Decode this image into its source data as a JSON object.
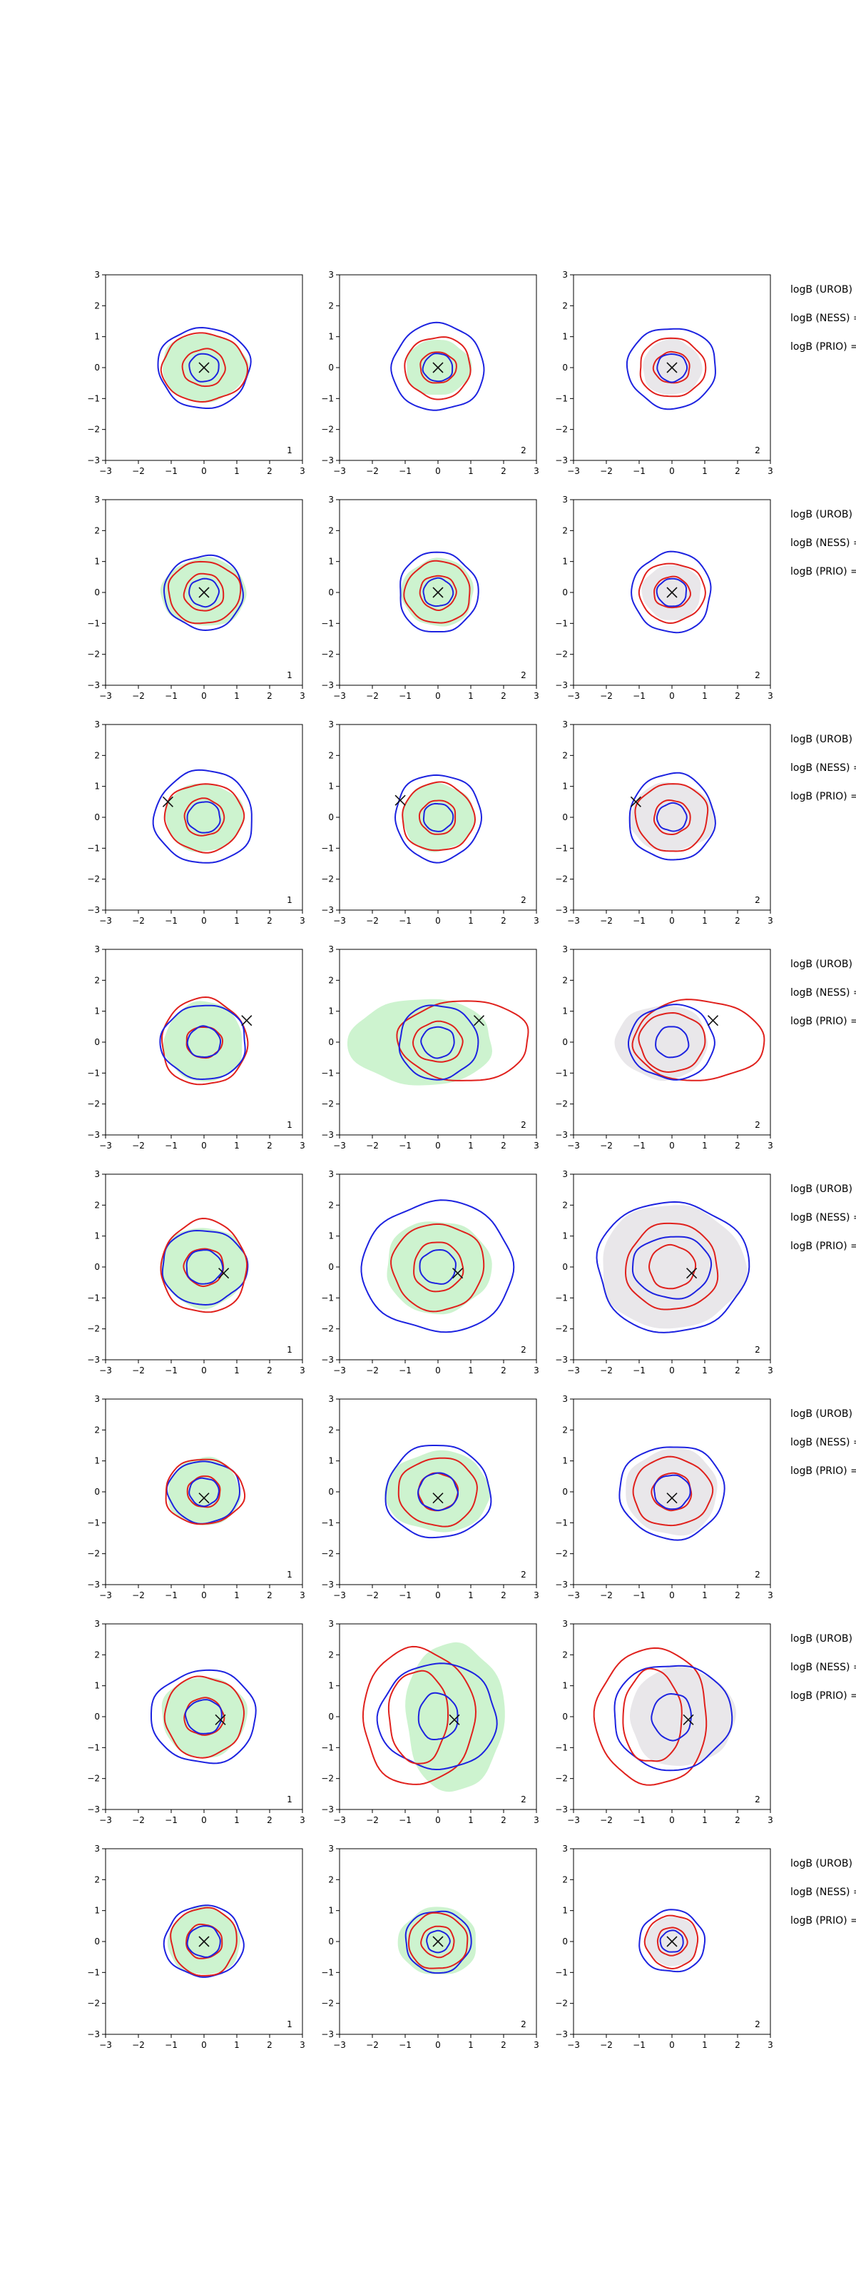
{
  "figure": {
    "background": "#ffffff"
  },
  "style": {
    "red": "#e0211d",
    "blue": "#1d23e0",
    "fill_green": "#cdf3cf",
    "fill_gray": "#e9e7ea",
    "marker": "#111111"
  },
  "chart_data": {
    "type": "contour",
    "rows": 8,
    "cols": 3,
    "xlim": [
      -3,
      3
    ],
    "ylim": [
      -3,
      3
    ],
    "ticks": [
      -3,
      -2,
      -1,
      0,
      1,
      2,
      3
    ],
    "panel_labels": [
      "1",
      "2",
      "2"
    ],
    "side_labels": [
      "logB (UROB)",
      "logB (NESS) =",
      "logB (PRIO) ="
    ],
    "panels": [
      [
        {
          "fill": "green",
          "fill_r": [
            1.3,
            1.1
          ],
          "marker": [
            0,
            0
          ],
          "contours": [
            {
              "color": "blue",
              "rx": 1.4,
              "ry": 1.3
            },
            {
              "color": "red",
              "rx": 1.3,
              "ry": 1.1
            },
            {
              "color": "red",
              "rx": 0.65,
              "ry": 0.6
            },
            {
              "color": "blue",
              "rx": 0.45,
              "ry": 0.45
            }
          ]
        },
        {
          "fill": "green",
          "fill_r": [
            1.0,
            0.9
          ],
          "marker": [
            0,
            0
          ],
          "contours": [
            {
              "color": "blue",
              "rx": 1.4,
              "ry": 1.4
            },
            {
              "color": "red",
              "rx": 1.0,
              "ry": 1.0
            },
            {
              "color": "red",
              "rx": 0.55,
              "ry": 0.5
            },
            {
              "color": "blue",
              "rx": 0.45,
              "ry": 0.45
            }
          ]
        },
        {
          "fill": "gray",
          "fill_r": [
            0.9,
            0.9
          ],
          "marker": [
            0,
            0
          ],
          "contours": [
            {
              "color": "blue",
              "rx": 1.35,
              "ry": 1.3
            },
            {
              "color": "red",
              "rx": 1.0,
              "ry": 0.95
            },
            {
              "color": "red",
              "rx": 0.55,
              "ry": 0.5
            },
            {
              "color": "blue",
              "rx": 0.45,
              "ry": 0.45
            }
          ]
        }
      ],
      [
        {
          "fill": "green",
          "fill_r": [
            1.3,
            1.1
          ],
          "marker": [
            0,
            0
          ],
          "contours": [
            {
              "color": "blue",
              "rx": 1.2,
              "ry": 1.2
            },
            {
              "color": "red",
              "rx": 1.1,
              "ry": 1.0
            },
            {
              "color": "red",
              "rx": 0.6,
              "ry": 0.6
            },
            {
              "color": "blue",
              "rx": 0.45,
              "ry": 0.45
            }
          ]
        },
        {
          "fill": "green",
          "fill_r": [
            1.1,
            1.1
          ],
          "marker": [
            0,
            0
          ],
          "contours": [
            {
              "color": "blue",
              "rx": 1.2,
              "ry": 1.3
            },
            {
              "color": "red",
              "rx": 1.0,
              "ry": 1.0
            },
            {
              "color": "red",
              "rx": 0.55,
              "ry": 0.55
            },
            {
              "color": "blue",
              "rx": 0.45,
              "ry": 0.45
            }
          ]
        },
        {
          "fill": "gray",
          "fill_r": [
            0.9,
            0.9
          ],
          "marker": [
            0,
            0
          ],
          "contours": [
            {
              "color": "blue",
              "rx": 1.2,
              "ry": 1.3
            },
            {
              "color": "red",
              "rx": 1.0,
              "ry": 0.95
            },
            {
              "color": "red",
              "rx": 0.55,
              "ry": 0.5
            },
            {
              "color": "blue",
              "rx": 0.45,
              "ry": 0.45
            }
          ]
        }
      ],
      [
        {
          "fill": "green",
          "fill_r": [
            1.2,
            1.1
          ],
          "marker": [
            -1.1,
            0.5
          ],
          "contours": [
            {
              "color": "blue",
              "rx": 1.5,
              "ry": 1.5
            },
            {
              "color": "red",
              "rx": 1.2,
              "ry": 1.1
            },
            {
              "color": "red",
              "rx": 0.6,
              "ry": 0.6
            },
            {
              "color": "blue",
              "rx": 0.5,
              "ry": 0.5
            }
          ]
        },
        {
          "fill": "green",
          "fill_r": [
            1.1,
            1.1
          ],
          "marker": [
            -1.15,
            0.55
          ],
          "contours": [
            {
              "color": "blue",
              "rx": 1.3,
              "ry": 1.4
            },
            {
              "color": "red",
              "rx": 1.1,
              "ry": 1.1
            },
            {
              "color": "red",
              "rx": 0.55,
              "ry": 0.55
            },
            {
              "color": "blue",
              "rx": 0.45,
              "ry": 0.45
            }
          ]
        },
        {
          "fill": "gray",
          "fill_r": [
            1.3,
            1.1
          ],
          "marker": [
            -1.1,
            0.5
          ],
          "contours": [
            {
              "color": "blue",
              "rx": 1.3,
              "ry": 1.4
            },
            {
              "color": "red",
              "rx": 1.1,
              "ry": 1.1
            },
            {
              "color": "red",
              "rx": 0.55,
              "ry": 0.55
            },
            {
              "color": "blue",
              "rx": 0.45,
              "ry": 0.45
            }
          ]
        }
      ],
      [
        {
          "fill": "green",
          "fill_r": [
            1.2,
            1.3
          ],
          "marker": [
            1.3,
            0.7
          ],
          "contours": [
            {
              "color": "red",
              "rx": 1.3,
              "ry": 1.4
            },
            {
              "color": "blue",
              "rx": 1.3,
              "ry": 1.2
            },
            {
              "color": "red",
              "rx": 0.55,
              "ry": 0.5
            },
            {
              "color": "blue",
              "rx": 0.5,
              "ry": 0.5
            }
          ]
        },
        {
          "fill": "green",
          "fill_r": [
            2.2,
            1.4
          ],
          "fill_cx": -0.5,
          "marker": [
            1.25,
            0.7
          ],
          "contours": [
            {
              "color": "red",
              "rx": 2.0,
              "ry": 1.3,
              "cx": 0.8,
              "cy": 0.05
            },
            {
              "color": "blue",
              "rx": 1.2,
              "ry": 1.2
            },
            {
              "color": "red",
              "rx": 0.75,
              "ry": 0.65
            },
            {
              "color": "blue",
              "rx": 0.5,
              "ry": 0.5
            }
          ]
        },
        {
          "fill": "gray",
          "fill_r": [
            1.4,
            1.2
          ],
          "fill_cx": -0.3,
          "marker": [
            1.25,
            0.7
          ],
          "contours": [
            {
              "color": "red",
              "rx": 2.0,
              "ry": 1.3,
              "cx": 0.8,
              "cy": 0.05
            },
            {
              "color": "blue",
              "rx": 1.3,
              "ry": 1.2
            },
            {
              "color": "red",
              "rx": 1.0,
              "ry": 0.95
            },
            {
              "color": "blue",
              "rx": 0.5,
              "ry": 0.5
            }
          ]
        }
      ],
      [
        {
          "fill": "green",
          "fill_r": [
            1.3,
            1.3
          ],
          "marker": [
            0.6,
            -0.2
          ],
          "contours": [
            {
              "color": "blue",
              "rx": 1.3,
              "ry": 1.2
            },
            {
              "color": "red",
              "rx": 1.3,
              "ry": 1.5
            },
            {
              "color": "red",
              "rx": 0.6,
              "ry": 0.6
            },
            {
              "color": "blue",
              "rx": 0.55,
              "ry": 0.55
            }
          ]
        },
        {
          "fill": "green",
          "fill_r": [
            1.6,
            1.5
          ],
          "marker": [
            0.6,
            -0.2
          ],
          "contours": [
            {
              "color": "blue",
              "rx": 2.3,
              "ry": 2.1
            },
            {
              "color": "red",
              "rx": 1.4,
              "ry": 1.4
            },
            {
              "color": "red",
              "rx": 0.75,
              "ry": 0.8
            },
            {
              "color": "blue",
              "rx": 0.55,
              "ry": 0.55
            }
          ]
        },
        {
          "fill": "gray",
          "fill_r": [
            2.2,
            2.0
          ],
          "marker": [
            0.6,
            -0.2
          ],
          "contours": [
            {
              "color": "blue",
              "rx": 2.3,
              "ry": 2.1
            },
            {
              "color": "red",
              "rx": 1.4,
              "ry": 1.4
            },
            {
              "color": "blue",
              "rx": 1.2,
              "ry": 1.0
            },
            {
              "color": "red",
              "rx": 0.7,
              "ry": 0.7
            }
          ]
        }
      ],
      [
        {
          "fill": "green",
          "fill_r": [
            1.1,
            1.1
          ],
          "marker": [
            0,
            -0.2
          ],
          "contours": [
            {
              "color": "blue",
              "rx": 1.1,
              "ry": 1.0
            },
            {
              "color": "red",
              "rx": 1.2,
              "ry": 1.05
            },
            {
              "color": "red",
              "rx": 0.5,
              "ry": 0.5
            },
            {
              "color": "blue",
              "rx": 0.45,
              "ry": 0.45
            }
          ]
        },
        {
          "fill": "green",
          "fill_r": [
            1.6,
            1.3
          ],
          "marker": [
            0,
            -0.2
          ],
          "contours": [
            {
              "color": "blue",
              "rx": 1.6,
              "ry": 1.5
            },
            {
              "color": "red",
              "rx": 1.2,
              "ry": 1.1
            },
            {
              "color": "red",
              "rx": 0.6,
              "ry": 0.6
            },
            {
              "color": "blue",
              "rx": 0.6,
              "ry": 0.6
            }
          ]
        },
        {
          "fill": "gray",
          "fill_r": [
            1.4,
            1.4
          ],
          "marker": [
            0,
            -0.2
          ],
          "contours": [
            {
              "color": "blue",
              "rx": 1.6,
              "ry": 1.5
            },
            {
              "color": "red",
              "rx": 1.2,
              "ry": 1.1
            },
            {
              "color": "red",
              "rx": 0.6,
              "ry": 0.6
            },
            {
              "color": "blue",
              "rx": 0.55,
              "ry": 0.55
            }
          ]
        }
      ],
      [
        {
          "fill": "green",
          "fill_r": [
            1.3,
            1.3
          ],
          "marker": [
            0.5,
            -0.1
          ],
          "contours": [
            {
              "color": "blue",
              "rx": 1.6,
              "ry": 1.5
            },
            {
              "color": "red",
              "rx": 1.2,
              "ry": 1.3
            },
            {
              "color": "red",
              "rx": 0.6,
              "ry": 0.6
            },
            {
              "color": "blue",
              "rx": 0.55,
              "ry": 0.55
            }
          ]
        },
        {
          "fill": "green",
          "fill_r": [
            1.5,
            2.4
          ],
          "fill_cx": 0.5,
          "marker": [
            0.5,
            -0.1
          ],
          "contours": [
            {
              "color": "red",
              "rx": 1.7,
              "ry": 2.2,
              "cx": -0.6,
              "cy": 0.0
            },
            {
              "color": "blue",
              "rx": 1.8,
              "ry": 1.7
            },
            {
              "color": "red",
              "rx": 0.9,
              "ry": 1.5,
              "cx": -0.6,
              "cy": 0.0
            },
            {
              "color": "blue",
              "rx": 0.6,
              "ry": 0.75
            }
          ]
        },
        {
          "fill": "gray",
          "fill_r": [
            1.6,
            1.6
          ],
          "fill_cx": 0.3,
          "marker": [
            0.5,
            -0.1
          ],
          "contours": [
            {
              "color": "red",
              "rx": 1.7,
              "ry": 2.2,
              "cx": -0.6,
              "cy": 0.0
            },
            {
              "color": "blue",
              "rx": 1.8,
              "ry": 1.7
            },
            {
              "color": "red",
              "rx": 0.9,
              "ry": 1.5,
              "cx": -0.6,
              "cy": 0.0
            },
            {
              "color": "blue",
              "rx": 0.6,
              "ry": 0.75
            }
          ]
        }
      ],
      [
        {
          "fill": "green",
          "fill_r": [
            1.1,
            1.1
          ],
          "marker": [
            0,
            0
          ],
          "contours": [
            {
              "color": "blue",
              "rx": 1.2,
              "ry": 1.15
            },
            {
              "color": "red",
              "rx": 1.0,
              "ry": 1.1
            },
            {
              "color": "red",
              "rx": 0.55,
              "ry": 0.55
            },
            {
              "color": "blue",
              "rx": 0.5,
              "ry": 0.5
            }
          ]
        },
        {
          "fill": "green",
          "fill_r": [
            1.2,
            1.1
          ],
          "marker": [
            0,
            0
          ],
          "contours": [
            {
              "color": "blue",
              "rx": 1.0,
              "ry": 1.0
            },
            {
              "color": "red",
              "rx": 0.9,
              "ry": 0.9
            },
            {
              "color": "red",
              "rx": 0.5,
              "ry": 0.5
            },
            {
              "color": "blue",
              "rx": 0.35,
              "ry": 0.35
            }
          ]
        },
        {
          "fill": "gray",
          "fill_r": [
            0.8,
            0.8
          ],
          "marker": [
            0,
            0
          ],
          "contours": [
            {
              "color": "blue",
              "rx": 1.0,
              "ry": 1.0
            },
            {
              "color": "red",
              "rx": 0.8,
              "ry": 0.85
            },
            {
              "color": "red",
              "rx": 0.45,
              "ry": 0.45
            },
            {
              "color": "blue",
              "rx": 0.35,
              "ry": 0.35
            }
          ]
        }
      ]
    ]
  }
}
